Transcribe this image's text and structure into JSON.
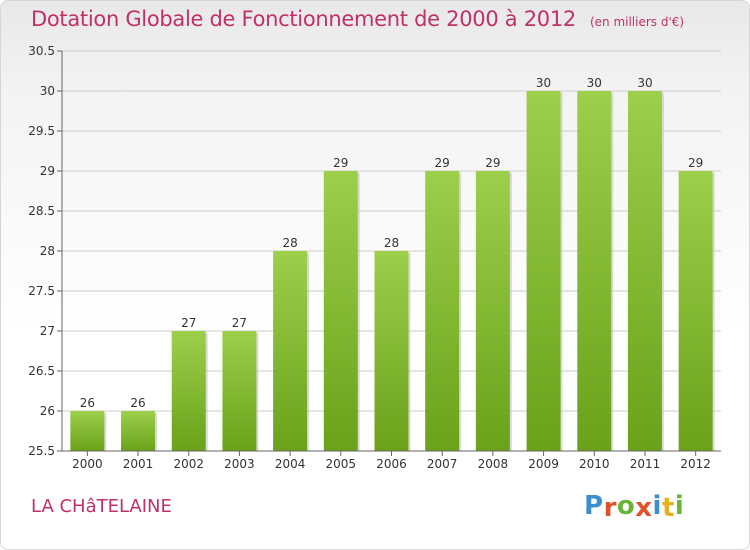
{
  "header": {
    "title": "Dotation Globale de Fonctionnement de 2000 à 2012",
    "unit": "(en milliers d'€)"
  },
  "footer": {
    "commune": "LA CHâTELAINE",
    "logo_text": "Proxiti"
  },
  "colors": {
    "title": "#c0306a",
    "bar_light": "#9ccf4a",
    "bar_dark": "#6ba21a",
    "axis": "#666666",
    "grid": "#cccccc",
    "logo_letters": [
      "#3b8ed0",
      "#e0502a",
      "#6cb33a",
      "#e0502a",
      "#3b8ed0",
      "#e5b21b",
      "#6cb33a"
    ]
  },
  "chart_data": {
    "type": "bar",
    "categories": [
      "2000",
      "2001",
      "2002",
      "2003",
      "2004",
      "2005",
      "2006",
      "2007",
      "2008",
      "2009",
      "2010",
      "2011",
      "2012"
    ],
    "values": [
      26,
      26,
      27,
      27,
      28,
      29,
      28,
      29,
      29,
      30,
      30,
      30,
      29
    ],
    "ylim": [
      25.5,
      30.5
    ],
    "yticks": [
      25.5,
      26,
      26.5,
      27,
      27.5,
      28,
      28.5,
      29,
      29.5,
      30,
      30.5
    ],
    "grid": true,
    "legend": "none"
  }
}
